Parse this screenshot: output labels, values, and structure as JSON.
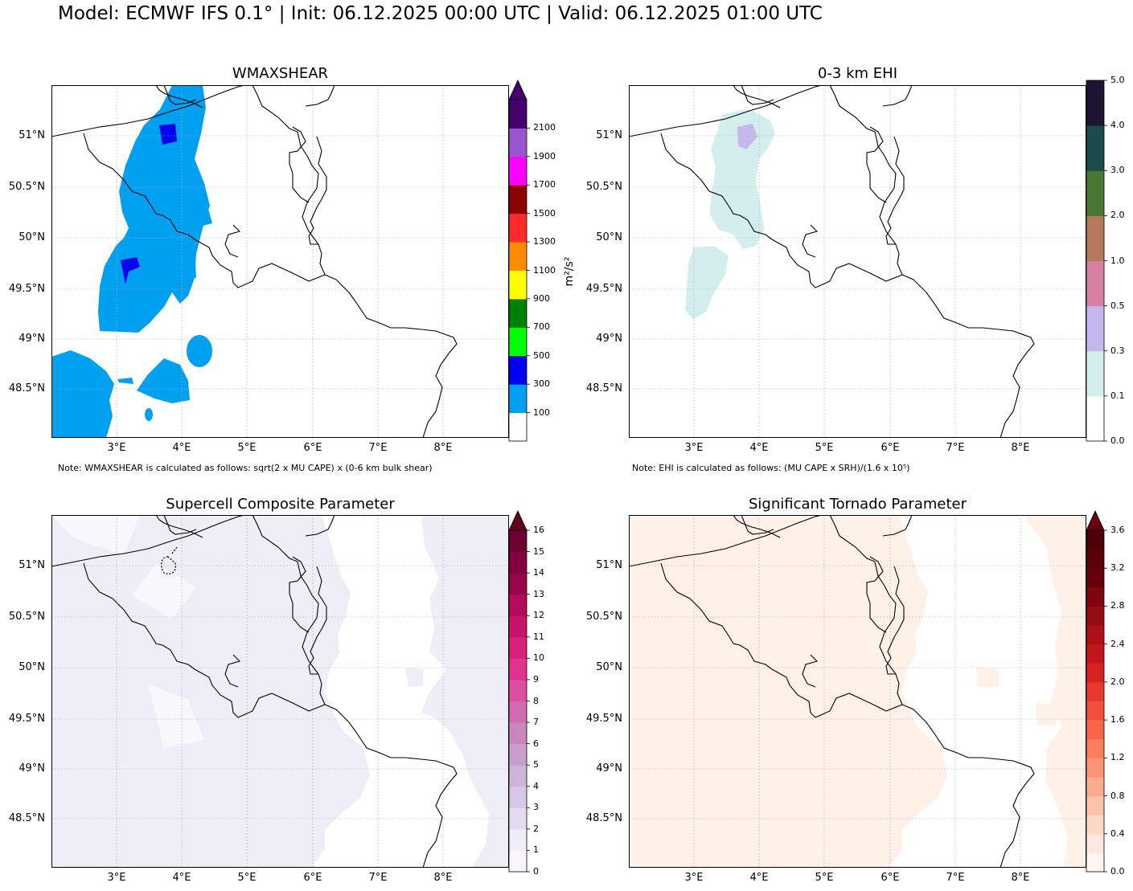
{
  "title": "Model: ECMWF IFS 0.1° | Init: 06.12.2025 00:00 UTC | Valid: 06.12.2025 01:00 UTC",
  "lat_labels": [
    "51°N",
    "50.5°N",
    "50°N",
    "49.5°N",
    "49°N",
    "48.5°N"
  ],
  "lon_labels": [
    "3°E",
    "4°E",
    "5°E",
    "6°E",
    "7°E",
    "8°E"
  ],
  "colors": {
    "border": "#000000",
    "grid": "#b0b0b0"
  },
  "panels": [
    {
      "id": "wmaxshear",
      "title": "WMAXSHEAR",
      "colorbar": {
        "labels": [
          "100",
          "300",
          "500",
          "700",
          "900",
          "1100",
          "1300",
          "1500",
          "1700",
          "1900",
          "2100"
        ],
        "colors": [
          "#ffffff",
          "#00a0f0",
          "#0000f0",
          "#00ff00",
          "#008000",
          "#ffff00",
          "#ff8c00",
          "#ff2a2a",
          "#8b0000",
          "#ff00ff",
          "#9955cc",
          "#46006e"
        ],
        "extend_top": true,
        "extend_color": "#46006e",
        "unit": "m²/s²"
      },
      "note": "Note: WMAXSHEAR is calculated as follows: sqrt(2 x MU CAPE) x (0-6 km bulk shear)"
    },
    {
      "id": "ehi",
      "title": "0-3 km EHI",
      "colorbar": {
        "labels": [
          "0.0",
          "0.1",
          "0.3",
          "0.5",
          "1.0",
          "2.0",
          "3.0",
          "4.0",
          "5.0"
        ],
        "colors": [
          "#ffffff",
          "#d4eeee",
          "#c6b8ec",
          "#d580a0",
          "#b4785a",
          "#4a7830",
          "#1a4b4b",
          "#1c1430"
        ],
        "extend_top": false,
        "unit": ""
      },
      "note": "Note: EHI is calculated as follows: (MU CAPE x SRH)/(1.6 x 10⁵)"
    },
    {
      "id": "scp",
      "title": "Supercell Composite Parameter",
      "colorbar": {
        "labels": [
          "0",
          "1",
          "2",
          "3",
          "4",
          "5",
          "6",
          "7",
          "8",
          "9",
          "10",
          "11",
          "12",
          "13",
          "14",
          "15",
          "16"
        ],
        "colors": [
          "#f8f6fa",
          "#efedf5",
          "#e2dcee",
          "#d6c8e4",
          "#cdb4d9",
          "#c89ecc",
          "#cb86be",
          "#d26bb0",
          "#db4fa0",
          "#df338d",
          "#d7207b",
          "#c8136a",
          "#b20c5a",
          "#98054a",
          "#82003d",
          "#6d0032"
        ],
        "extend_top": true,
        "extend_color": "#67001f",
        "unit": ""
      },
      "note": ""
    },
    {
      "id": "stp",
      "title": "Significant Tornado Parameter",
      "colorbar": {
        "labels": [
          "0.0",
          "0.4",
          "0.8",
          "1.2",
          "1.6",
          "2.0",
          "2.4",
          "2.8",
          "3.2",
          "3.6"
        ],
        "colors": [
          "#fff5f0",
          "#fee7dc",
          "#fdd7c5",
          "#fcc2aa",
          "#fcab8f",
          "#fc9474",
          "#fb7d5d",
          "#f86649",
          "#f14f39",
          "#e6382b",
          "#d52221",
          "#c3161b",
          "#ad1116",
          "#960b13",
          "#7e0610",
          "#67000d",
          "#5a0008",
          "#4d0005"
        ],
        "extend_top": true,
        "extend_color": "#67000d",
        "unit": ""
      },
      "note": ""
    }
  ]
}
